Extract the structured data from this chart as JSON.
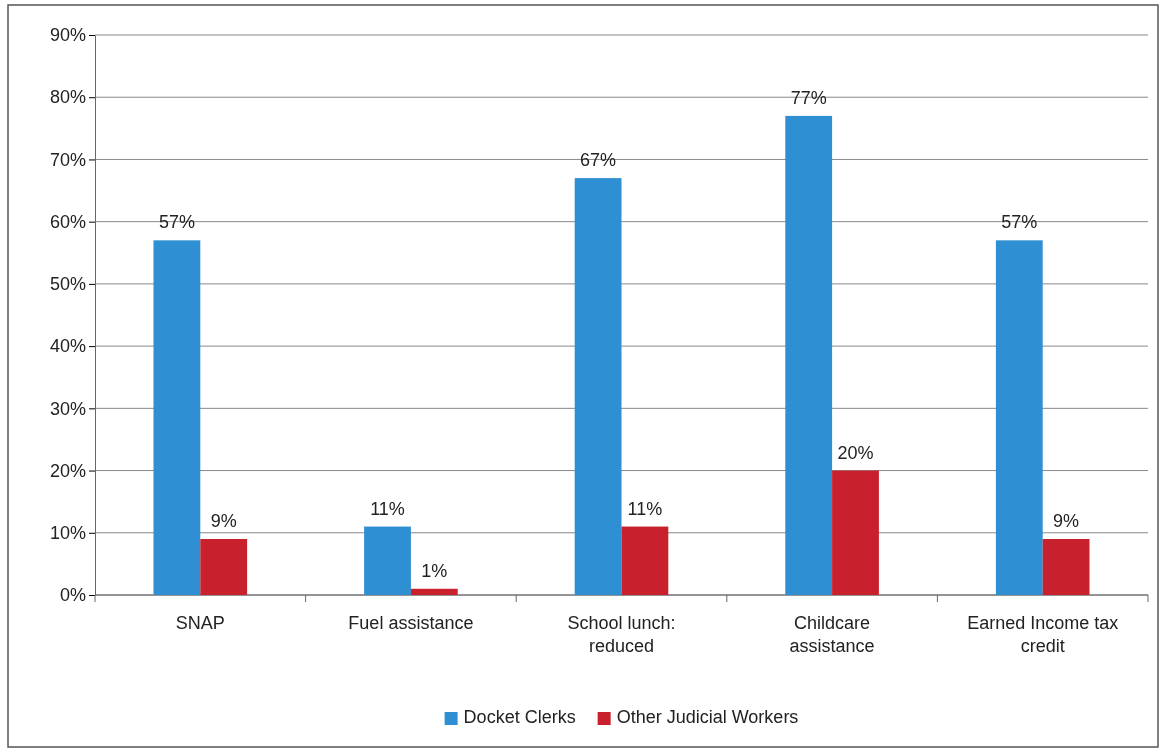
{
  "chart_data": {
    "type": "bar",
    "categories": [
      "SNAP",
      "Fuel assistance",
      "School lunch: reduced",
      "Childcare assistance",
      "Earned Income tax credit"
    ],
    "series": [
      {
        "name": "Docket Clerks",
        "color": "#2f8fd3",
        "values": [
          57,
          11,
          67,
          77,
          57
        ],
        "value_labels": [
          "57%",
          "11%",
          "67%",
          "77%",
          "57%"
        ]
      },
      {
        "name": "Other Judicial Workers",
        "color": "#c8202c",
        "values": [
          9,
          1,
          11,
          20,
          9
        ],
        "value_labels": [
          "9%",
          "1%",
          "11%",
          "20%",
          "9%"
        ]
      }
    ],
    "ylim": [
      0,
      90
    ],
    "yticks": [
      {
        "value": 0,
        "label": "0%"
      },
      {
        "value": 10,
        "label": "10%"
      },
      {
        "value": 20,
        "label": "20%"
      },
      {
        "value": 30,
        "label": "30%"
      },
      {
        "value": 40,
        "label": "40%"
      },
      {
        "value": 50,
        "label": "50%"
      },
      {
        "value": 60,
        "label": "60%"
      },
      {
        "value": 70,
        "label": "70%"
      },
      {
        "value": 80,
        "label": "80%"
      },
      {
        "value": 90,
        "label": "90%"
      }
    ],
    "grid": "y",
    "legend": "bottom"
  }
}
